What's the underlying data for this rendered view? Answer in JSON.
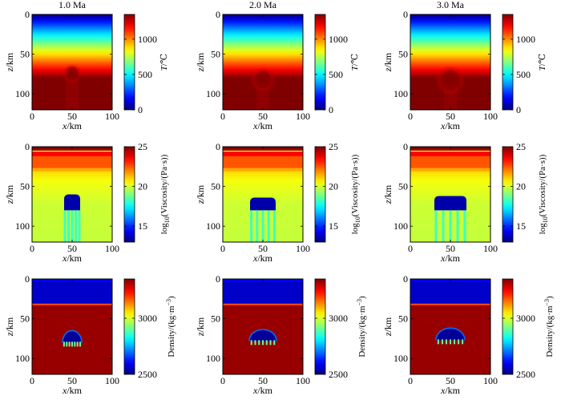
{
  "figure": {
    "columns": [
      "1.0 Ma",
      "2.0 Ma",
      "3.0 Ma"
    ],
    "x_label": "x/km",
    "z_label": "z/km",
    "x_ticks": [
      0,
      50,
      100
    ],
    "z_ticks": [
      0,
      50,
      100
    ],
    "x_range": [
      0,
      100
    ],
    "z_range": [
      0,
      120
    ]
  },
  "rows": [
    {
      "field": "temperature",
      "colorbar_label": "T/℃",
      "colorbar_ticks": [
        0,
        500,
        1000
      ],
      "clim": [
        0,
        1350
      ]
    },
    {
      "field": "viscosity",
      "colorbar_label_main": "log",
      "colorbar_label_sub": "10",
      "colorbar_label_rest": "(Viscosity/(Pa·s))",
      "colorbar_ticks": [
        15,
        20,
        25
      ],
      "clim": [
        13,
        25
      ]
    },
    {
      "field": "density",
      "colorbar_label_main": "Density/(kg·m",
      "colorbar_label_sup": "−3",
      "colorbar_label_end": ")",
      "colorbar_ticks": [
        2500,
        3000
      ],
      "clim": [
        2500,
        3350
      ]
    }
  ],
  "chart_data": {
    "type": "heatmap",
    "panels": 9,
    "times_Ma": [
      1.0,
      2.0,
      3.0
    ],
    "x_range_km": [
      0,
      100
    ],
    "z_range_km": [
      0,
      120
    ],
    "temperature": {
      "unit": "°C",
      "surface": 0,
      "mantle": 1350,
      "lithosphere_base_km": 80,
      "plume_center_x_km": 50,
      "plume_head_top_km": [
        62,
        66,
        64
      ],
      "plume_head_radius_km": [
        14,
        18,
        21
      ],
      "plume_head_value": 1350
    },
    "viscosity": {
      "unit": "log10(Pa·s)",
      "crust_layers_km": [
        [
          0,
          3,
          25
        ],
        [
          3,
          5,
          24.5
        ],
        [
          5,
          12,
          23.5
        ],
        [
          12,
          27,
          22.5
        ],
        [
          27,
          31,
          21.5
        ]
      ],
      "mantle_value": 19.8,
      "plume_value": 13.5,
      "plume_center_x_km": 50,
      "plume_top_km": [
        60,
        64,
        62
      ],
      "plume_bottom_km": [
        80,
        80,
        80
      ],
      "plume_half_width_km": [
        10,
        16,
        20
      ]
    },
    "density": {
      "unit": "kg·m^-3",
      "crust_value": 2780,
      "crust_base_km": 32,
      "mantle_value": 3330,
      "top_layer_km": [
        0,
        3
      ],
      "top_layer_value": 2600,
      "plume_value": 2520,
      "plume_center_x_km": 50,
      "plume_top_km": [
        60,
        62,
        60
      ],
      "plume_bottom_km": [
        80,
        78,
        77
      ],
      "plume_half_width_km": [
        12,
        17,
        18
      ]
    }
  }
}
